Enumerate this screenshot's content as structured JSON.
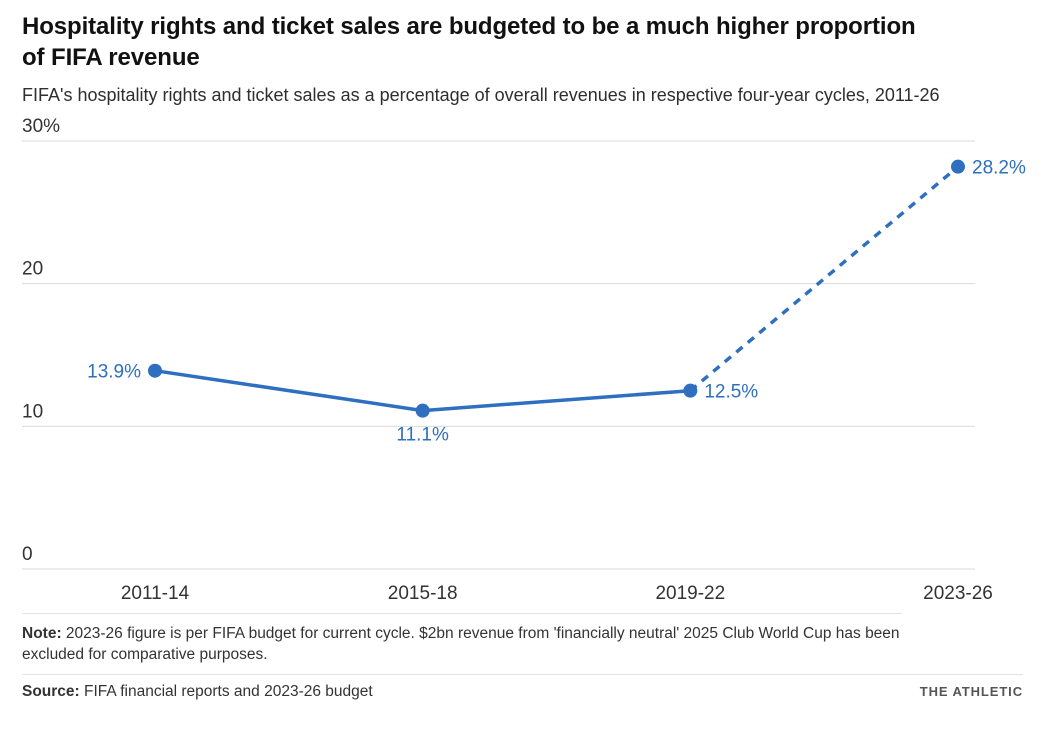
{
  "header": {
    "title": "Hospitality rights and ticket sales are budgeted to be a much higher proportion of FIFA revenue",
    "subtitle": "FIFA's hospitality rights and ticket sales as a percentage of overall revenues in respective four-year cycles, 2011-26"
  },
  "chart_data": {
    "type": "line",
    "categories": [
      "2011-14",
      "2015-18",
      "2019-22",
      "2023-26"
    ],
    "values": [
      13.9,
      11.1,
      12.5,
      28.2
    ],
    "value_labels": [
      "13.9%",
      "11.1%",
      "12.5%",
      "28.2%"
    ],
    "label_positions": [
      "left",
      "below",
      "right",
      "right"
    ],
    "dashed_from_index": 2,
    "y_ticks": [
      0,
      10,
      20,
      30
    ],
    "y_tick_labels": [
      "0",
      "10",
      "20",
      "30%"
    ],
    "ylim": [
      0,
      30
    ],
    "grid": true,
    "legend": "none",
    "line_color": "#2e6fc0",
    "grid_color": "#d9d9d9",
    "axis_text_color": "#333333",
    "title": "Hospitality rights and ticket sales are budgeted to be a much higher proportion of FIFA revenue",
    "xlabel": "",
    "ylabel": ""
  },
  "footer": {
    "note_label": "Note:",
    "note_text": " 2023-26 figure is per FIFA budget for current cycle. $2bn revenue from 'financially neutral' 2025 Club World Cup has been excluded for comparative purposes.",
    "source_label": "Source:",
    "source_text": " FIFA financial reports and 2023-26 budget",
    "brand": "THE ATHLETIC"
  }
}
